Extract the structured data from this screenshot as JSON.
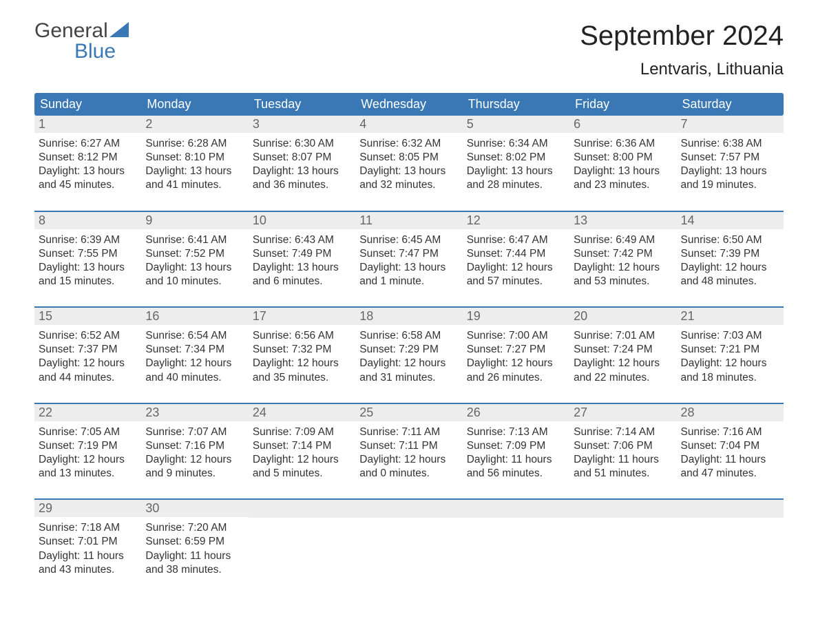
{
  "logo": {
    "top": "General",
    "bottom": "Blue",
    "tri_color": "#3a78b5"
  },
  "title": "September 2024",
  "location": "Lentvaris, Lithuania",
  "colors": {
    "header_bg": "#3a78b5",
    "daynum_bg": "#ededed",
    "week_border": "#3a78b5",
    "text": "#333333",
    "title_text": "#222222",
    "logo_gray": "#444444"
  },
  "days_of_week": [
    "Sunday",
    "Monday",
    "Tuesday",
    "Wednesday",
    "Thursday",
    "Friday",
    "Saturday"
  ],
  "weeks": [
    [
      {
        "n": "1",
        "sunrise": "Sunrise: 6:27 AM",
        "sunset": "Sunset: 8:12 PM",
        "dl1": "Daylight: 13 hours",
        "dl2": "and 45 minutes."
      },
      {
        "n": "2",
        "sunrise": "Sunrise: 6:28 AM",
        "sunset": "Sunset: 8:10 PM",
        "dl1": "Daylight: 13 hours",
        "dl2": "and 41 minutes."
      },
      {
        "n": "3",
        "sunrise": "Sunrise: 6:30 AM",
        "sunset": "Sunset: 8:07 PM",
        "dl1": "Daylight: 13 hours",
        "dl2": "and 36 minutes."
      },
      {
        "n": "4",
        "sunrise": "Sunrise: 6:32 AM",
        "sunset": "Sunset: 8:05 PM",
        "dl1": "Daylight: 13 hours",
        "dl2": "and 32 minutes."
      },
      {
        "n": "5",
        "sunrise": "Sunrise: 6:34 AM",
        "sunset": "Sunset: 8:02 PM",
        "dl1": "Daylight: 13 hours",
        "dl2": "and 28 minutes."
      },
      {
        "n": "6",
        "sunrise": "Sunrise: 6:36 AM",
        "sunset": "Sunset: 8:00 PM",
        "dl1": "Daylight: 13 hours",
        "dl2": "and 23 minutes."
      },
      {
        "n": "7",
        "sunrise": "Sunrise: 6:38 AM",
        "sunset": "Sunset: 7:57 PM",
        "dl1": "Daylight: 13 hours",
        "dl2": "and 19 minutes."
      }
    ],
    [
      {
        "n": "8",
        "sunrise": "Sunrise: 6:39 AM",
        "sunset": "Sunset: 7:55 PM",
        "dl1": "Daylight: 13 hours",
        "dl2": "and 15 minutes."
      },
      {
        "n": "9",
        "sunrise": "Sunrise: 6:41 AM",
        "sunset": "Sunset: 7:52 PM",
        "dl1": "Daylight: 13 hours",
        "dl2": "and 10 minutes."
      },
      {
        "n": "10",
        "sunrise": "Sunrise: 6:43 AM",
        "sunset": "Sunset: 7:49 PM",
        "dl1": "Daylight: 13 hours",
        "dl2": "and 6 minutes."
      },
      {
        "n": "11",
        "sunrise": "Sunrise: 6:45 AM",
        "sunset": "Sunset: 7:47 PM",
        "dl1": "Daylight: 13 hours",
        "dl2": "and 1 minute."
      },
      {
        "n": "12",
        "sunrise": "Sunrise: 6:47 AM",
        "sunset": "Sunset: 7:44 PM",
        "dl1": "Daylight: 12 hours",
        "dl2": "and 57 minutes."
      },
      {
        "n": "13",
        "sunrise": "Sunrise: 6:49 AM",
        "sunset": "Sunset: 7:42 PM",
        "dl1": "Daylight: 12 hours",
        "dl2": "and 53 minutes."
      },
      {
        "n": "14",
        "sunrise": "Sunrise: 6:50 AM",
        "sunset": "Sunset: 7:39 PM",
        "dl1": "Daylight: 12 hours",
        "dl2": "and 48 minutes."
      }
    ],
    [
      {
        "n": "15",
        "sunrise": "Sunrise: 6:52 AM",
        "sunset": "Sunset: 7:37 PM",
        "dl1": "Daylight: 12 hours",
        "dl2": "and 44 minutes."
      },
      {
        "n": "16",
        "sunrise": "Sunrise: 6:54 AM",
        "sunset": "Sunset: 7:34 PM",
        "dl1": "Daylight: 12 hours",
        "dl2": "and 40 minutes."
      },
      {
        "n": "17",
        "sunrise": "Sunrise: 6:56 AM",
        "sunset": "Sunset: 7:32 PM",
        "dl1": "Daylight: 12 hours",
        "dl2": "and 35 minutes."
      },
      {
        "n": "18",
        "sunrise": "Sunrise: 6:58 AM",
        "sunset": "Sunset: 7:29 PM",
        "dl1": "Daylight: 12 hours",
        "dl2": "and 31 minutes."
      },
      {
        "n": "19",
        "sunrise": "Sunrise: 7:00 AM",
        "sunset": "Sunset: 7:27 PM",
        "dl1": "Daylight: 12 hours",
        "dl2": "and 26 minutes."
      },
      {
        "n": "20",
        "sunrise": "Sunrise: 7:01 AM",
        "sunset": "Sunset: 7:24 PM",
        "dl1": "Daylight: 12 hours",
        "dl2": "and 22 minutes."
      },
      {
        "n": "21",
        "sunrise": "Sunrise: 7:03 AM",
        "sunset": "Sunset: 7:21 PM",
        "dl1": "Daylight: 12 hours",
        "dl2": "and 18 minutes."
      }
    ],
    [
      {
        "n": "22",
        "sunrise": "Sunrise: 7:05 AM",
        "sunset": "Sunset: 7:19 PM",
        "dl1": "Daylight: 12 hours",
        "dl2": "and 13 minutes."
      },
      {
        "n": "23",
        "sunrise": "Sunrise: 7:07 AM",
        "sunset": "Sunset: 7:16 PM",
        "dl1": "Daylight: 12 hours",
        "dl2": "and 9 minutes."
      },
      {
        "n": "24",
        "sunrise": "Sunrise: 7:09 AM",
        "sunset": "Sunset: 7:14 PM",
        "dl1": "Daylight: 12 hours",
        "dl2": "and 5 minutes."
      },
      {
        "n": "25",
        "sunrise": "Sunrise: 7:11 AM",
        "sunset": "Sunset: 7:11 PM",
        "dl1": "Daylight: 12 hours",
        "dl2": "and 0 minutes."
      },
      {
        "n": "26",
        "sunrise": "Sunrise: 7:13 AM",
        "sunset": "Sunset: 7:09 PM",
        "dl1": "Daylight: 11 hours",
        "dl2": "and 56 minutes."
      },
      {
        "n": "27",
        "sunrise": "Sunrise: 7:14 AM",
        "sunset": "Sunset: 7:06 PM",
        "dl1": "Daylight: 11 hours",
        "dl2": "and 51 minutes."
      },
      {
        "n": "28",
        "sunrise": "Sunrise: 7:16 AM",
        "sunset": "Sunset: 7:04 PM",
        "dl1": "Daylight: 11 hours",
        "dl2": "and 47 minutes."
      }
    ],
    [
      {
        "n": "29",
        "sunrise": "Sunrise: 7:18 AM",
        "sunset": "Sunset: 7:01 PM",
        "dl1": "Daylight: 11 hours",
        "dl2": "and 43 minutes."
      },
      {
        "n": "30",
        "sunrise": "Sunrise: 7:20 AM",
        "sunset": "Sunset: 6:59 PM",
        "dl1": "Daylight: 11 hours",
        "dl2": "and 38 minutes."
      },
      {
        "empty": true
      },
      {
        "empty": true
      },
      {
        "empty": true
      },
      {
        "empty": true
      },
      {
        "empty": true
      }
    ]
  ]
}
